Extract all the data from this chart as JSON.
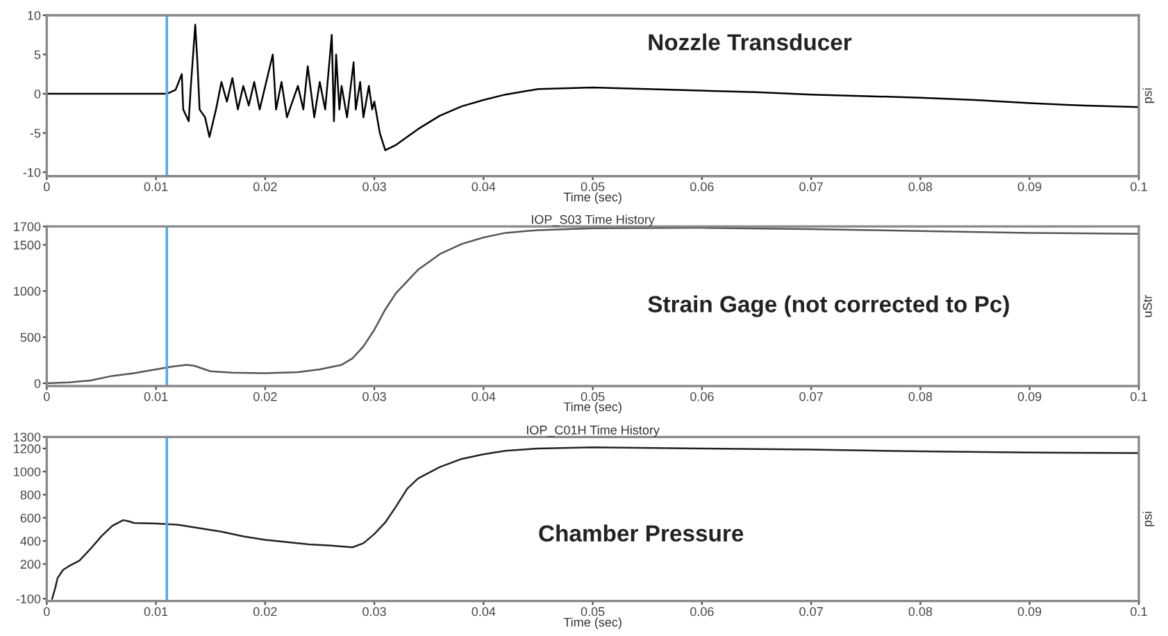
{
  "chart_data": [
    {
      "type": "line",
      "xlabel": "Time (sec)",
      "ylabel": "psi",
      "annotations": [
        "Nozzle Transducer"
      ],
      "xlim": [
        0,
        0.1
      ],
      "xticks": [
        0,
        0.01,
        0.02,
        0.03,
        0.04,
        0.05,
        0.06,
        0.07,
        0.08,
        0.09,
        0.1
      ],
      "ylim": [
        -10.5,
        10
      ],
      "yticks": [
        -10,
        -5,
        0,
        5,
        10
      ],
      "grid": false,
      "ref_lines": [
        {
          "axis": "x",
          "value": 0.011,
          "color": "#5aa9e6"
        }
      ],
      "series": [
        {
          "color": "#000000",
          "x": [
            0,
            0.005,
            0.011,
            0.0118,
            0.01237,
            0.0125,
            0.013,
            0.0132,
            0.0136,
            0.0138,
            0.014,
            0.0145,
            0.0149,
            0.0155,
            0.016,
            0.0165,
            0.017,
            0.0175,
            0.018,
            0.0185,
            0.019,
            0.0195,
            0.0207,
            0.021,
            0.0215,
            0.022,
            0.023,
            0.0235,
            0.0239,
            0.0245,
            0.025,
            0.0255,
            0.0261,
            0.0263,
            0.0265,
            0.0268,
            0.027,
            0.0275,
            0.0281,
            0.0283,
            0.0287,
            0.029,
            0.0295,
            0.0298,
            0.03,
            0.0305,
            0.031,
            0.032,
            0.034,
            0.036,
            0.038,
            0.04,
            0.042,
            0.045,
            0.05,
            0.055,
            0.06,
            0.065,
            0.07,
            0.075,
            0.08,
            0.085,
            0.09,
            0.095,
            0.1
          ],
          "values": [
            0,
            0,
            0,
            0.5,
            2.5,
            -2,
            -3.5,
            1,
            8.8,
            4,
            -2,
            -3,
            -5.5,
            -2,
            1.5,
            -1,
            2,
            -2,
            1,
            -1.5,
            1.5,
            -2,
            5,
            -2,
            1.5,
            -3,
            1,
            -2,
            3.5,
            -3,
            1.5,
            -2,
            7.5,
            -3.5,
            5,
            -2,
            1,
            -3,
            4,
            -2,
            1.5,
            -3,
            1,
            -2,
            -1,
            -5,
            -7.2,
            -6.5,
            -4.5,
            -2.8,
            -1.6,
            -0.8,
            -0.1,
            0.6,
            0.8,
            0.6,
            0.4,
            0.2,
            -0.1,
            -0.3,
            -0.5,
            -0.8,
            -1.2,
            -1.5,
            -1.7
          ]
        }
      ]
    },
    {
      "type": "line",
      "title": "IOP_S03 Time History",
      "xlabel": "Time (sec)",
      "ylabel": "uStr",
      "annotations": [
        "Strain Gage (not corrected to Pc)"
      ],
      "xlim": [
        0,
        0.1
      ],
      "xticks": [
        0,
        0.01,
        0.02,
        0.03,
        0.04,
        0.05,
        0.06,
        0.07,
        0.08,
        0.09,
        0.1
      ],
      "ylim": [
        -30,
        1700
      ],
      "yticks": [
        0,
        500,
        1000,
        1500,
        1700
      ],
      "grid": false,
      "ref_lines": [
        {
          "axis": "x",
          "value": 0.011,
          "color": "#5aa9e6"
        }
      ],
      "series": [
        {
          "color": "#555555",
          "x": [
            0,
            0.002,
            0.004,
            0.006,
            0.008,
            0.01,
            0.0115,
            0.0128,
            0.0135,
            0.015,
            0.017,
            0.02,
            0.023,
            0.025,
            0.027,
            0.028,
            0.029,
            0.03,
            0.031,
            0.032,
            0.034,
            0.036,
            0.038,
            0.04,
            0.042,
            0.045,
            0.05,
            0.06,
            0.07,
            0.08,
            0.09,
            0.1
          ],
          "values": [
            0,
            10,
            30,
            80,
            110,
            150,
            180,
            200,
            190,
            130,
            115,
            110,
            120,
            150,
            200,
            270,
            400,
            580,
            800,
            980,
            1230,
            1400,
            1510,
            1580,
            1630,
            1660,
            1680,
            1685,
            1670,
            1650,
            1630,
            1620
          ]
        }
      ]
    },
    {
      "type": "line",
      "title": "IOP_C01H Time History",
      "xlabel": "Time (sec)",
      "ylabel": "psi",
      "annotations": [
        "Chamber Pressure"
      ],
      "xlim": [
        0,
        0.1
      ],
      "xticks": [
        0,
        0.01,
        0.02,
        0.03,
        0.04,
        0.05,
        0.06,
        0.07,
        0.08,
        0.09,
        0.1
      ],
      "ylim": [
        -120,
        1300
      ],
      "yticks": [
        -100,
        200,
        400,
        600,
        800,
        1000,
        1200,
        1300
      ],
      "grid": false,
      "ref_lines": [
        {
          "axis": "x",
          "value": 0.011,
          "color": "#5aa9e6"
        }
      ],
      "series": [
        {
          "color": "#222222",
          "x": [
            0.0005,
            0.0008,
            0.001,
            0.0015,
            0.002,
            0.003,
            0.004,
            0.005,
            0.006,
            0.007,
            0.0075,
            0.008,
            0.01,
            0.012,
            0.014,
            0.016,
            0.018,
            0.02,
            0.022,
            0.024,
            0.026,
            0.028,
            0.029,
            0.03,
            0.031,
            0.032,
            0.033,
            0.034,
            0.036,
            0.038,
            0.04,
            0.042,
            0.045,
            0.05,
            0.06,
            0.07,
            0.08,
            0.09,
            0.1
          ],
          "values": [
            -100,
            0,
            80,
            150,
            180,
            230,
            330,
            440,
            530,
            580,
            570,
            555,
            550,
            540,
            510,
            480,
            440,
            410,
            390,
            370,
            360,
            345,
            380,
            460,
            560,
            700,
            850,
            940,
            1040,
            1110,
            1150,
            1180,
            1200,
            1210,
            1200,
            1190,
            1175,
            1165,
            1160
          ]
        }
      ]
    }
  ]
}
